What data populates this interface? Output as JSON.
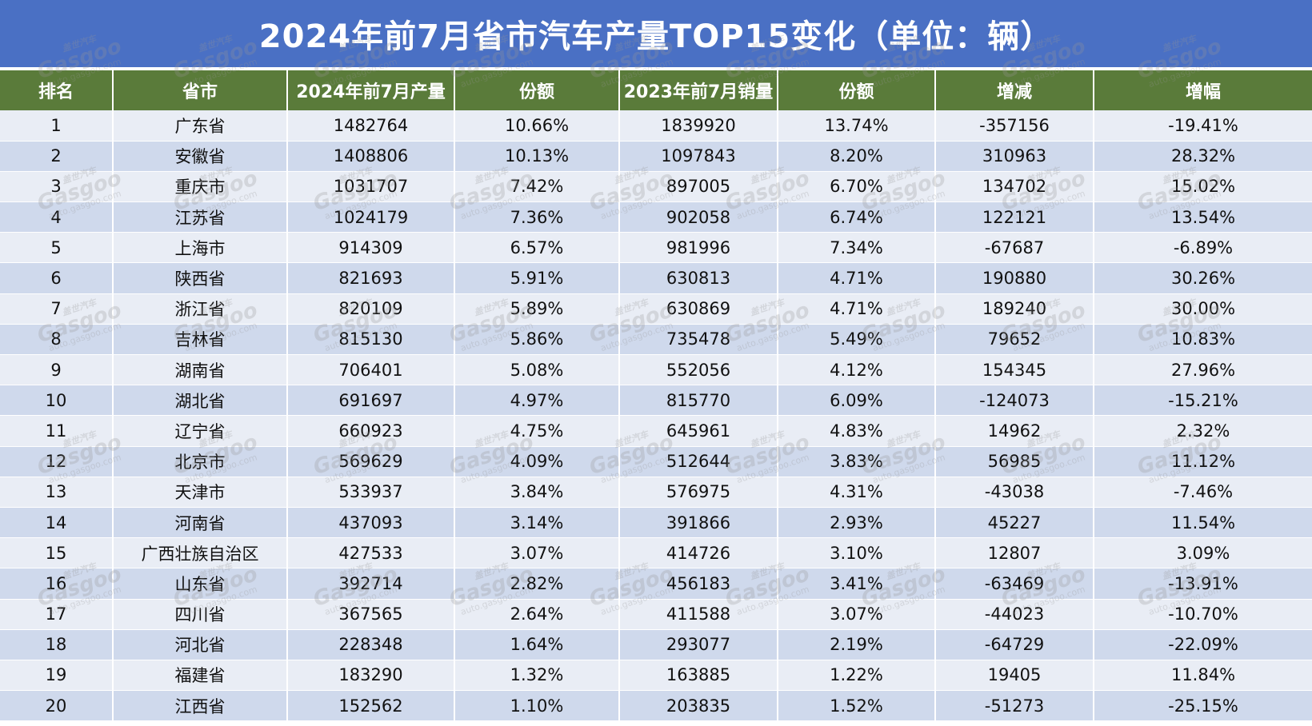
{
  "title": "2024年前7月省市汽车产量TOP15变化（单位：辆）",
  "watermark": {
    "cn": "盖世汽车",
    "en": "Gasgoo",
    "url": "auto.gasgoo.com"
  },
  "table": {
    "headers": [
      "排名",
      "省市",
      "2024年前7月产量",
      "份额",
      "2023年前7月销量",
      "份额",
      "增减",
      "增幅"
    ],
    "rows": [
      [
        "1",
        "广东省",
        "1482764",
        "10.66%",
        "1839920",
        "13.74%",
        "-357156",
        "-19.41%"
      ],
      [
        "2",
        "安徽省",
        "1408806",
        "10.13%",
        "1097843",
        "8.20%",
        "310963",
        "28.32%"
      ],
      [
        "3",
        "重庆市",
        "1031707",
        "7.42%",
        "897005",
        "6.70%",
        "134702",
        "15.02%"
      ],
      [
        "4",
        "江苏省",
        "1024179",
        "7.36%",
        "902058",
        "6.74%",
        "122121",
        "13.54%"
      ],
      [
        "5",
        "上海市",
        "914309",
        "6.57%",
        "981996",
        "7.34%",
        "-67687",
        "-6.89%"
      ],
      [
        "6",
        "陕西省",
        "821693",
        "5.91%",
        "630813",
        "4.71%",
        "190880",
        "30.26%"
      ],
      [
        "7",
        "浙江省",
        "820109",
        "5.89%",
        "630869",
        "4.71%",
        "189240",
        "30.00%"
      ],
      [
        "8",
        "吉林省",
        "815130",
        "5.86%",
        "735478",
        "5.49%",
        "79652",
        "10.83%"
      ],
      [
        "9",
        "湖南省",
        "706401",
        "5.08%",
        "552056",
        "4.12%",
        "154345",
        "27.96%"
      ],
      [
        "10",
        "湖北省",
        "691697",
        "4.97%",
        "815770",
        "6.09%",
        "-124073",
        "-15.21%"
      ],
      [
        "11",
        "辽宁省",
        "660923",
        "4.75%",
        "645961",
        "4.83%",
        "14962",
        "2.32%"
      ],
      [
        "12",
        "北京市",
        "569629",
        "4.09%",
        "512644",
        "3.83%",
        "56985",
        "11.12%"
      ],
      [
        "13",
        "天津市",
        "533937",
        "3.84%",
        "576975",
        "4.31%",
        "-43038",
        "-7.46%"
      ],
      [
        "14",
        "河南省",
        "437093",
        "3.14%",
        "391866",
        "2.93%",
        "45227",
        "11.54%"
      ],
      [
        "15",
        "广西壮族自治区",
        "427533",
        "3.07%",
        "414726",
        "3.10%",
        "12807",
        "3.09%"
      ],
      [
        "16",
        "山东省",
        "392714",
        "2.82%",
        "456183",
        "3.41%",
        "-63469",
        "-13.91%"
      ],
      [
        "17",
        "四川省",
        "367565",
        "2.64%",
        "411588",
        "3.07%",
        "-44023",
        "-10.70%"
      ],
      [
        "18",
        "河北省",
        "228348",
        "1.64%",
        "293077",
        "2.19%",
        "-64729",
        "-22.09%"
      ],
      [
        "19",
        "福建省",
        "183290",
        "1.32%",
        "163885",
        "1.22%",
        "19405",
        "11.84%"
      ],
      [
        "20",
        "江西省",
        "152562",
        "1.10%",
        "203835",
        "1.52%",
        "-51273",
        "-25.15%"
      ]
    ]
  }
}
